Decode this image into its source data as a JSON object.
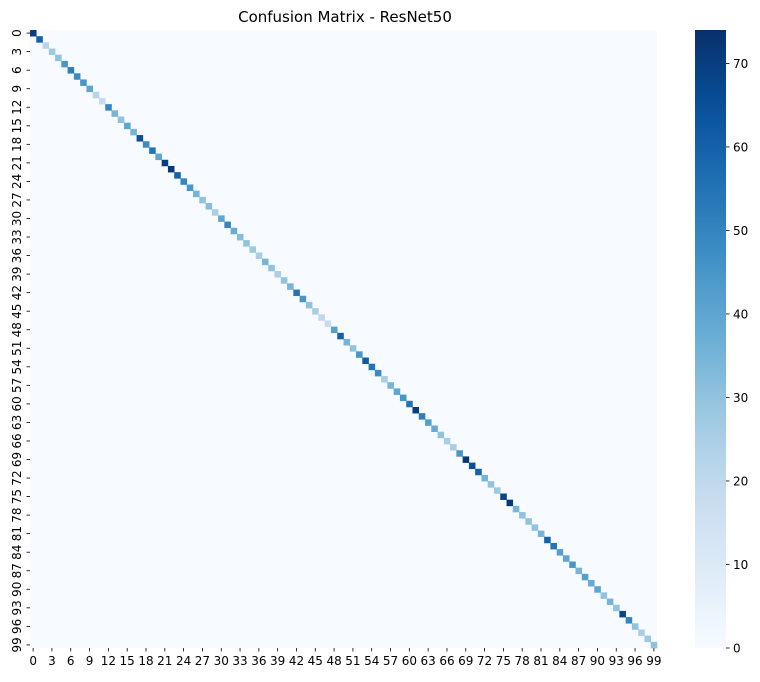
{
  "chart_data": {
    "type": "heatmap",
    "title": "Confusion Matrix - ResNet50",
    "n_classes": 100,
    "xtick_labels": [
      "0",
      "3",
      "6",
      "9",
      "12",
      "15",
      "18",
      "21",
      "24",
      "27",
      "30",
      "33",
      "36",
      "39",
      "42",
      "45",
      "48",
      "51",
      "54",
      "57",
      "60",
      "63",
      "66",
      "69",
      "72",
      "75",
      "78",
      "81",
      "84",
      "87",
      "90",
      "93",
      "96",
      "99"
    ],
    "ytick_labels": [
      "0",
      "3",
      "6",
      "9",
      "12",
      "15",
      "18",
      "21",
      "24",
      "27",
      "30",
      "33",
      "36",
      "39",
      "42",
      "45",
      "48",
      "51",
      "54",
      "57",
      "60",
      "63",
      "66",
      "69",
      "72",
      "75",
      "78",
      "81",
      "84",
      "87",
      "90",
      "93",
      "96",
      "99"
    ],
    "tick_step": 3,
    "diagonal_values": [
      70,
      60,
      22,
      28,
      30,
      45,
      52,
      48,
      45,
      40,
      22,
      18,
      50,
      35,
      30,
      40,
      35,
      65,
      48,
      55,
      40,
      70,
      72,
      60,
      50,
      45,
      35,
      30,
      32,
      25,
      40,
      50,
      38,
      32,
      30,
      28,
      25,
      35,
      30,
      25,
      30,
      35,
      55,
      45,
      30,
      25,
      20,
      18,
      42,
      60,
      35,
      30,
      45,
      62,
      55,
      48,
      25,
      35,
      40,
      45,
      55,
      70,
      52,
      42,
      38,
      30,
      25,
      25,
      45,
      72,
      65,
      60,
      35,
      30,
      28,
      68,
      72,
      35,
      30,
      30,
      30,
      35,
      60,
      55,
      42,
      40,
      45,
      35,
      42,
      38,
      40,
      30,
      35,
      30,
      68,
      50,
      30,
      25,
      28,
      30
    ],
    "colorbar": {
      "min": 0,
      "max": 74,
      "ticks": [
        0,
        10,
        20,
        30,
        40,
        50,
        60,
        70
      ],
      "colormap": "Blues"
    }
  }
}
